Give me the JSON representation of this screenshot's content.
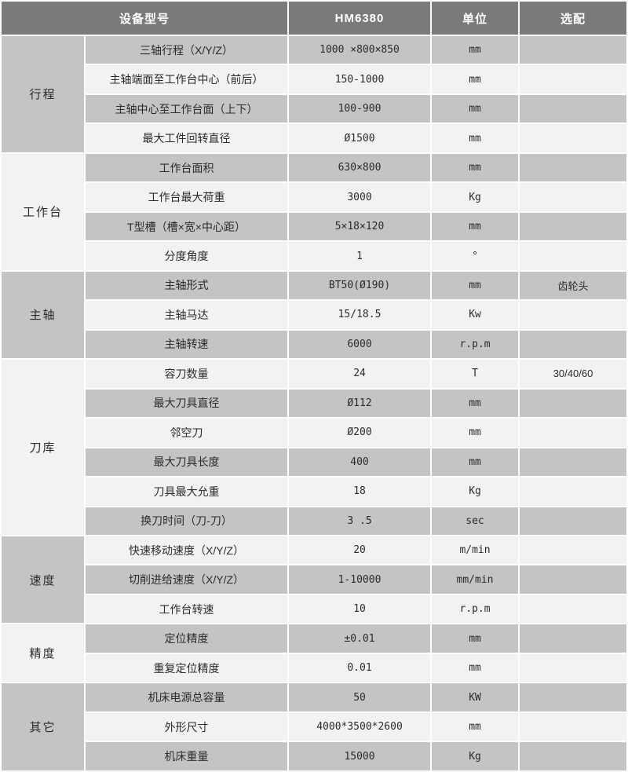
{
  "table": {
    "header": {
      "device_model": "设备型号",
      "model": "HM6380",
      "unit": "单位",
      "optional": "选配"
    },
    "groups": [
      {
        "category": "行程",
        "name": "travel",
        "rows": [
          {
            "param": "三轴行程（X/Y/Z）",
            "value": "1000 ×800×850",
            "unit": "mm",
            "optional": ""
          },
          {
            "param": "主轴端面至工作台中心（前后）",
            "value": "150-1000",
            "unit": "mm",
            "optional": ""
          },
          {
            "param": "主轴中心至工作台面（上下）",
            "value": "100-900",
            "unit": "mm",
            "optional": ""
          },
          {
            "param": "最大工件回转直径",
            "value": "Ø1500",
            "unit": "mm",
            "optional": ""
          }
        ]
      },
      {
        "category": "工作台",
        "name": "worktable",
        "rows": [
          {
            "param": "工作台面积",
            "value": "630×800",
            "unit": "mm",
            "optional": ""
          },
          {
            "param": "工作台最大荷重",
            "value": "3000",
            "unit": "Kg",
            "optional": ""
          },
          {
            "param": "T型槽（槽×宽×中心距）",
            "value": "5×18×120",
            "unit": "mm",
            "optional": ""
          },
          {
            "param": "分度角度",
            "value": "1",
            "unit": "°",
            "optional": ""
          }
        ]
      },
      {
        "category": "主轴",
        "name": "spindle",
        "rows": [
          {
            "param": "主轴形式",
            "value": "BT50(Ø190)",
            "unit": "mm",
            "optional": "齿轮头"
          },
          {
            "param": "主轴马达",
            "value": "15/18.5",
            "unit": "Kw",
            "optional": ""
          },
          {
            "param": "主轴转速",
            "value": "6000",
            "unit": "r.p.m",
            "optional": ""
          }
        ]
      },
      {
        "category": "刀库",
        "name": "tool-magazine",
        "rows": [
          {
            "param": "容刀数量",
            "value": "24",
            "unit": "T",
            "optional": "30/40/60"
          },
          {
            "param": "最大刀具直径",
            "value": "Ø112",
            "unit": "mm",
            "optional": ""
          },
          {
            "param": "邻空刀",
            "value": "Ø200",
            "unit": "mm",
            "optional": ""
          },
          {
            "param": "最大刀具长度",
            "value": "400",
            "unit": "mm",
            "optional": ""
          },
          {
            "param": "刀具最大允重",
            "value": "18",
            "unit": "Kg",
            "optional": ""
          },
          {
            "param": "换刀时间（刀-刀）",
            "value": "3 .5",
            "unit": "sec",
            "optional": ""
          }
        ]
      },
      {
        "category": "速度",
        "name": "speed",
        "rows": [
          {
            "param": "快速移动速度（X/Y/Z）",
            "value": "20",
            "unit": "m/min",
            "optional": ""
          },
          {
            "param": "切削进给速度（X/Y/Z）",
            "value": "1-10000",
            "unit": "mm/min",
            "optional": ""
          },
          {
            "param": "工作台转速",
            "value": "10",
            "unit": "r.p.m",
            "optional": ""
          }
        ]
      },
      {
        "category": "精度",
        "name": "accuracy",
        "rows": [
          {
            "param": "定位精度",
            "value": "±0.01",
            "unit": "mm",
            "optional": ""
          },
          {
            "param": "重复定位精度",
            "value": "0.01",
            "unit": "mm",
            "optional": ""
          }
        ]
      },
      {
        "category": "其它",
        "name": "other",
        "rows": [
          {
            "param": "机床电源总容量",
            "value": "50",
            "unit": "KW",
            "optional": ""
          },
          {
            "param": "外形尺寸",
            "value": "4000*3500*2600",
            "unit": "mm",
            "optional": ""
          },
          {
            "param": "机床重量",
            "value": "15000",
            "unit": "Kg",
            "optional": ""
          }
        ]
      }
    ],
    "colors": {
      "header_bg": "#7a7a7a",
      "header_text": "#ffffff",
      "row_gray": "#c4c4c4",
      "row_light": "#f2f2f2",
      "border": "#ffffff",
      "text": "#2b2b2b"
    }
  }
}
